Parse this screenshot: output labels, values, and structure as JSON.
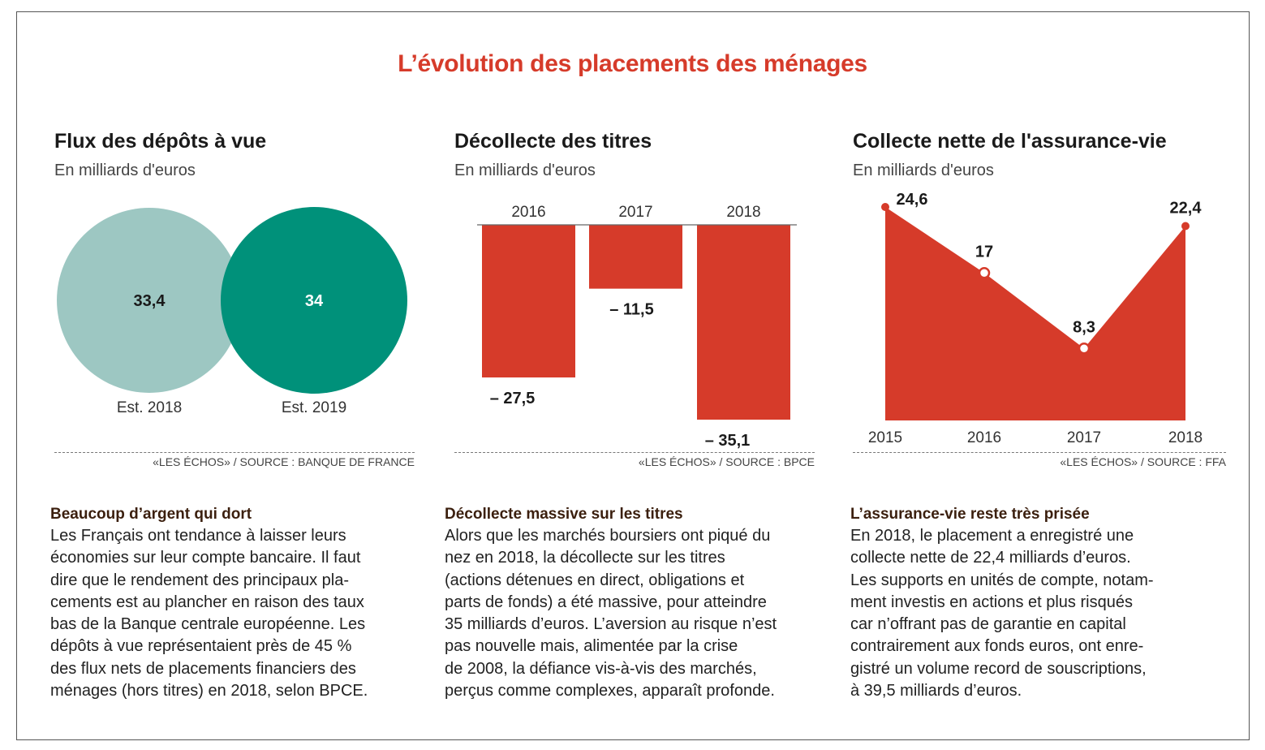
{
  "main_title": "L’évolution des placements des ménages",
  "panels": [
    {
      "title": "Flux des dépôts à vue",
      "subtitle": "En milliards d'euros",
      "source": "«LES ÉCHOS» / SOURCE : BANQUE DE FRANCE",
      "body_title": "Beaucoup d’argent qui dort",
      "body_lines": [
        "Les Français ont tendance à laisser leurs",
        "économies sur leur compte bancaire. Il faut",
        "dire que le rendement des principaux pla-",
        "cements est au plancher en raison des taux",
        "bas de la Banque centrale européenne. Les",
        "dépôts à vue représentaient près de 45 %",
        "des flux nets de placements financiers des",
        "ménages (hors titres) en 2018, selon BPCE."
      ]
    },
    {
      "title": "Décollecte des titres",
      "subtitle": "En milliards d'euros",
      "source": "«LES ÉCHOS» / SOURCE : BPCE",
      "body_title": "Décollecte massive sur les titres",
      "body_lines": [
        "Alors que les marchés boursiers ont piqué du",
        "nez en 2018, la décollecte sur les titres",
        "(actions détenues en direct, obligations et",
        "parts de fonds) a été massive, pour atteindre",
        "35 milliards d’euros. L’aversion au risque n’est",
        "pas nouvelle mais, alimentée par la crise",
        "de 2008, la défiance vis-à-vis des marchés,",
        "perçus comme complexes, apparaît profonde."
      ]
    },
    {
      "title": "Collecte nette de l'assurance-vie",
      "subtitle": "En milliards d'euros",
      "source": "«LES ÉCHOS» / SOURCE : FFA",
      "body_title": "L’assurance-vie reste très prisée",
      "body_lines": [
        "En 2018, le placement a enregistré une",
        "collecte nette de 22,4 milliards d’euros.",
        "Les supports en unités de compte, notam-",
        "ment investis en actions et plus risqués",
        "car n’offrant pas de garantie en capital",
        "contrairement aux fonds euros, ont enre-",
        "gistré un volume record de souscriptions,",
        "à 39,5 milliards d’euros."
      ]
    }
  ],
  "chart_data": [
    {
      "type": "bubble",
      "title": "Flux des dépôts à vue",
      "subtitle": "En milliards d'euros",
      "categories": [
        "Est. 2018",
        "Est. 2019"
      ],
      "values": [
        33.4,
        34
      ],
      "value_labels": [
        "33,4",
        "34"
      ],
      "colors": [
        "#9dc7c2",
        "#00917a"
      ]
    },
    {
      "type": "bar",
      "title": "Décollecte des titres",
      "subtitle": "En milliards d'euros",
      "categories": [
        "2016",
        "2017",
        "2018"
      ],
      "values": [
        -27.5,
        -11.5,
        -35.1
      ],
      "value_labels": [
        "– 27,5",
        "– 11,5",
        "– 35,1"
      ],
      "ylim": [
        -35.1,
        0
      ],
      "color": "#d63b2a"
    },
    {
      "type": "area",
      "title": "Collecte nette de l'assurance-vie",
      "subtitle": "En milliards d'euros",
      "x": [
        "2015",
        "2016",
        "2017",
        "2018"
      ],
      "values": [
        24.6,
        17,
        8.3,
        22.4
      ],
      "value_labels": [
        "24,6",
        "17",
        "8,3",
        "22,4"
      ],
      "ylim": [
        0,
        24.6
      ],
      "color": "#d63b2a"
    }
  ]
}
